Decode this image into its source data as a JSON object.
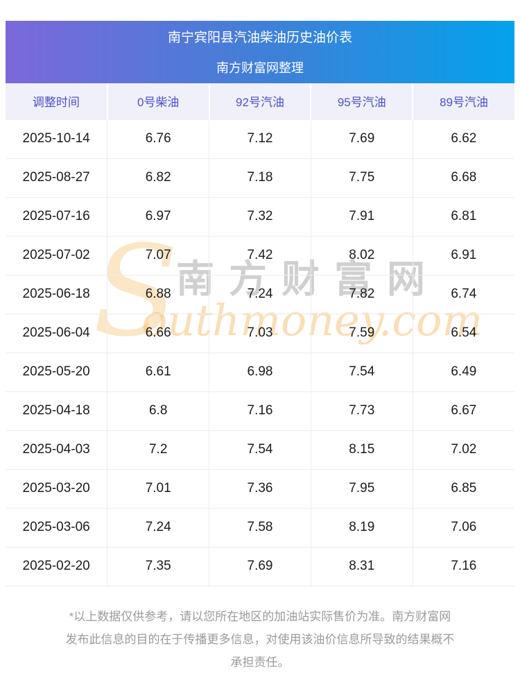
{
  "banner": {
    "title": "南宁宾阳县汽油柴油历史油价表",
    "subtitle": "南方财富网整理"
  },
  "chart_data": {
    "type": "table",
    "title": "南宁宾阳县汽油柴油历史油价表",
    "subtitle": "南方财富网整理",
    "columns": [
      "调整时间",
      "0号柴油",
      "92号汽油",
      "95号汽油",
      "89号汽油"
    ],
    "rows": [
      [
        "2025-10-14",
        "6.76",
        "7.12",
        "7.69",
        "6.62"
      ],
      [
        "2025-08-27",
        "6.82",
        "7.18",
        "7.75",
        "6.68"
      ],
      [
        "2025-07-16",
        "6.97",
        "7.32",
        "7.91",
        "6.81"
      ],
      [
        "2025-07-02",
        "7.07",
        "7.42",
        "8.02",
        "6.91"
      ],
      [
        "2025-06-18",
        "6.88",
        "7.24",
        "7.82",
        "6.74"
      ],
      [
        "2025-06-04",
        "6.66",
        "7.03",
        "7.59",
        "6.54"
      ],
      [
        "2025-05-20",
        "6.61",
        "6.98",
        "7.54",
        "6.49"
      ],
      [
        "2025-04-18",
        "6.8",
        "7.16",
        "7.73",
        "6.67"
      ],
      [
        "2025-04-03",
        "7.2",
        "7.54",
        "8.15",
        "7.02"
      ],
      [
        "2025-03-20",
        "7.01",
        "7.36",
        "7.95",
        "6.85"
      ],
      [
        "2025-03-06",
        "7.24",
        "7.58",
        "8.19",
        "7.06"
      ],
      [
        "2025-02-20",
        "7.35",
        "7.69",
        "8.31",
        "7.16"
      ]
    ]
  },
  "watermark": {
    "s": "S",
    "cn": "南方财富网",
    "en": "outhmoney.com"
  },
  "footer": {
    "lines": [
      "*以上数据仅供参考，请以您所在地区的加油站实际售价为准。南方财富网",
      "发布此信息的目的在于传播更多信息，对使用该油价信息所导致的结果概不",
      "承担责任。"
    ]
  },
  "colors": {
    "banner_gradient_left": "#7c68da",
    "banner_gradient_right": "#03a2ec",
    "banner_text": "#ffffff",
    "table_header_bg": "#f0f0fa",
    "table_header_text": "#4d51c6",
    "table_border": "#ecedf5",
    "body_text": "#1b1b1b",
    "footer_text": "#9b9b9b",
    "watermark_orange": "#f6be6e",
    "watermark_gray": "#a5a5a5"
  }
}
